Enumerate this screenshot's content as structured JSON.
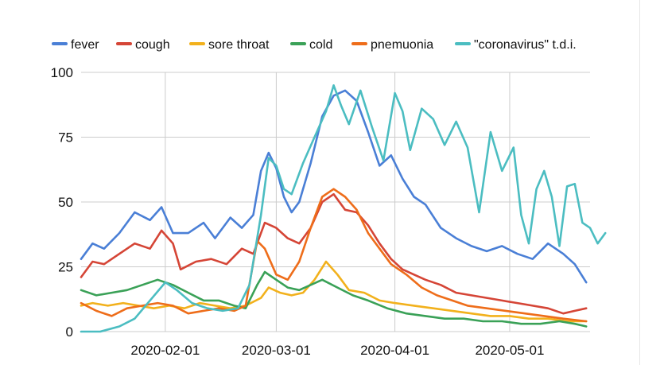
{
  "chart_data": {
    "type": "line",
    "title": "",
    "xlabel": "",
    "ylabel": "",
    "x_start": "2020-01-10",
    "x_end": "2020-05-22",
    "ylim": [
      0,
      100
    ],
    "y_ticks": [
      0,
      25,
      50,
      75,
      100
    ],
    "x_ticks": [
      "2020-02-01",
      "2020-03-01",
      "2020-04-01",
      "2020-05-01"
    ],
    "grid": true,
    "legend_position": "top",
    "series": [
      {
        "name": "fever",
        "color": "#4a7fd6",
        "points": [
          [
            "2020-01-10",
            28
          ],
          [
            "2020-01-13",
            34
          ],
          [
            "2020-01-16",
            32
          ],
          [
            "2020-01-20",
            38
          ],
          [
            "2020-01-24",
            46
          ],
          [
            "2020-01-28",
            43
          ],
          [
            "2020-01-31",
            48
          ],
          [
            "2020-02-03",
            38
          ],
          [
            "2020-02-07",
            38
          ],
          [
            "2020-02-11",
            42
          ],
          [
            "2020-02-14",
            36
          ],
          [
            "2020-02-18",
            44
          ],
          [
            "2020-02-21",
            40
          ],
          [
            "2020-02-24",
            45
          ],
          [
            "2020-02-26",
            62
          ],
          [
            "2020-02-28",
            69
          ],
          [
            "2020-03-01",
            63
          ],
          [
            "2020-03-03",
            52
          ],
          [
            "2020-03-05",
            46
          ],
          [
            "2020-03-07",
            50
          ],
          [
            "2020-03-10",
            65
          ],
          [
            "2020-03-13",
            83
          ],
          [
            "2020-03-16",
            91
          ],
          [
            "2020-03-19",
            93
          ],
          [
            "2020-03-22",
            89
          ],
          [
            "2020-03-25",
            77
          ],
          [
            "2020-03-28",
            64
          ],
          [
            "2020-03-31",
            68
          ],
          [
            "2020-04-03",
            59
          ],
          [
            "2020-04-06",
            52
          ],
          [
            "2020-04-09",
            49
          ],
          [
            "2020-04-13",
            40
          ],
          [
            "2020-04-17",
            36
          ],
          [
            "2020-04-21",
            33
          ],
          [
            "2020-04-25",
            31
          ],
          [
            "2020-04-29",
            33
          ],
          [
            "2020-05-03",
            30
          ],
          [
            "2020-05-07",
            28
          ],
          [
            "2020-05-11",
            34
          ],
          [
            "2020-05-15",
            30
          ],
          [
            "2020-05-18",
            26
          ],
          [
            "2020-05-21",
            19
          ]
        ]
      },
      {
        "name": "cough",
        "color": "#d54536",
        "points": [
          [
            "2020-01-10",
            21
          ],
          [
            "2020-01-13",
            27
          ],
          [
            "2020-01-16",
            26
          ],
          [
            "2020-01-20",
            30
          ],
          [
            "2020-01-24",
            34
          ],
          [
            "2020-01-28",
            32
          ],
          [
            "2020-01-31",
            39
          ],
          [
            "2020-02-03",
            34
          ],
          [
            "2020-02-05",
            24
          ],
          [
            "2020-02-09",
            27
          ],
          [
            "2020-02-13",
            28
          ],
          [
            "2020-02-17",
            26
          ],
          [
            "2020-02-21",
            32
          ],
          [
            "2020-02-24",
            30
          ],
          [
            "2020-02-27",
            42
          ],
          [
            "2020-03-01",
            40
          ],
          [
            "2020-03-04",
            36
          ],
          [
            "2020-03-07",
            34
          ],
          [
            "2020-03-10",
            40
          ],
          [
            "2020-03-13",
            50
          ],
          [
            "2020-03-16",
            53
          ],
          [
            "2020-03-19",
            47
          ],
          [
            "2020-03-22",
            46
          ],
          [
            "2020-03-25",
            41
          ],
          [
            "2020-03-28",
            34
          ],
          [
            "2020-03-31",
            28
          ],
          [
            "2020-04-03",
            24
          ],
          [
            "2020-04-06",
            22
          ],
          [
            "2020-04-09",
            20
          ],
          [
            "2020-04-13",
            18
          ],
          [
            "2020-04-17",
            15
          ],
          [
            "2020-04-21",
            14
          ],
          [
            "2020-04-25",
            13
          ],
          [
            "2020-04-29",
            12
          ],
          [
            "2020-05-03",
            11
          ],
          [
            "2020-05-07",
            10
          ],
          [
            "2020-05-11",
            9
          ],
          [
            "2020-05-15",
            7
          ],
          [
            "2020-05-18",
            8
          ],
          [
            "2020-05-21",
            9
          ]
        ]
      },
      {
        "name": "sore throat",
        "color": "#f2b11c",
        "points": [
          [
            "2020-01-10",
            10
          ],
          [
            "2020-01-13",
            11
          ],
          [
            "2020-01-17",
            10
          ],
          [
            "2020-01-21",
            11
          ],
          [
            "2020-01-25",
            10
          ],
          [
            "2020-01-29",
            9
          ],
          [
            "2020-02-02",
            10
          ],
          [
            "2020-02-06",
            9
          ],
          [
            "2020-02-10",
            11
          ],
          [
            "2020-02-14",
            10
          ],
          [
            "2020-02-18",
            9
          ],
          [
            "2020-02-22",
            10
          ],
          [
            "2020-02-26",
            13
          ],
          [
            "2020-02-28",
            17
          ],
          [
            "2020-03-02",
            15
          ],
          [
            "2020-03-05",
            14
          ],
          [
            "2020-03-08",
            15
          ],
          [
            "2020-03-11",
            20
          ],
          [
            "2020-03-14",
            27
          ],
          [
            "2020-03-17",
            22
          ],
          [
            "2020-03-20",
            16
          ],
          [
            "2020-03-24",
            15
          ],
          [
            "2020-03-28",
            12
          ],
          [
            "2020-04-01",
            11
          ],
          [
            "2020-04-06",
            10
          ],
          [
            "2020-04-11",
            9
          ],
          [
            "2020-04-16",
            8
          ],
          [
            "2020-04-21",
            7
          ],
          [
            "2020-04-26",
            6
          ],
          [
            "2020-05-01",
            6
          ],
          [
            "2020-05-06",
            5
          ],
          [
            "2020-05-11",
            5
          ],
          [
            "2020-05-16",
            4
          ],
          [
            "2020-05-21",
            4
          ]
        ]
      },
      {
        "name": "cold",
        "color": "#3aa157",
        "points": [
          [
            "2020-01-10",
            16
          ],
          [
            "2020-01-14",
            14
          ],
          [
            "2020-01-18",
            15
          ],
          [
            "2020-01-22",
            16
          ],
          [
            "2020-01-26",
            18
          ],
          [
            "2020-01-30",
            20
          ],
          [
            "2020-02-03",
            18
          ],
          [
            "2020-02-07",
            15
          ],
          [
            "2020-02-11",
            12
          ],
          [
            "2020-02-15",
            12
          ],
          [
            "2020-02-19",
            10
          ],
          [
            "2020-02-22",
            9
          ],
          [
            "2020-02-25",
            18
          ],
          [
            "2020-02-27",
            23
          ],
          [
            "2020-03-01",
            20
          ],
          [
            "2020-03-04",
            17
          ],
          [
            "2020-03-07",
            16
          ],
          [
            "2020-03-10",
            18
          ],
          [
            "2020-03-13",
            20
          ],
          [
            "2020-03-17",
            17
          ],
          [
            "2020-03-21",
            14
          ],
          [
            "2020-03-25",
            12
          ],
          [
            "2020-03-30",
            9
          ],
          [
            "2020-04-04",
            7
          ],
          [
            "2020-04-09",
            6
          ],
          [
            "2020-04-14",
            5
          ],
          [
            "2020-04-19",
            5
          ],
          [
            "2020-04-24",
            4
          ],
          [
            "2020-04-29",
            4
          ],
          [
            "2020-05-04",
            3
          ],
          [
            "2020-05-09",
            3
          ],
          [
            "2020-05-14",
            4
          ],
          [
            "2020-05-18",
            3
          ],
          [
            "2020-05-21",
            2
          ]
        ]
      },
      {
        "name": "pnemuonia",
        "color": "#ee6d1a",
        "points": [
          [
            "2020-01-10",
            11
          ],
          [
            "2020-01-14",
            8
          ],
          [
            "2020-01-18",
            6
          ],
          [
            "2020-01-22",
            9
          ],
          [
            "2020-01-26",
            10
          ],
          [
            "2020-01-30",
            11
          ],
          [
            "2020-02-03",
            10
          ],
          [
            "2020-02-07",
            7
          ],
          [
            "2020-02-11",
            8
          ],
          [
            "2020-02-15",
            9
          ],
          [
            "2020-02-19",
            8
          ],
          [
            "2020-02-22",
            10
          ],
          [
            "2020-02-25",
            35
          ],
          [
            "2020-02-27",
            32
          ],
          [
            "2020-03-01",
            22
          ],
          [
            "2020-03-04",
            20
          ],
          [
            "2020-03-07",
            27
          ],
          [
            "2020-03-10",
            40
          ],
          [
            "2020-03-13",
            52
          ],
          [
            "2020-03-16",
            55
          ],
          [
            "2020-03-19",
            52
          ],
          [
            "2020-03-22",
            47
          ],
          [
            "2020-03-25",
            38
          ],
          [
            "2020-03-28",
            32
          ],
          [
            "2020-03-31",
            26
          ],
          [
            "2020-04-04",
            22
          ],
          [
            "2020-04-08",
            17
          ],
          [
            "2020-04-12",
            14
          ],
          [
            "2020-04-16",
            12
          ],
          [
            "2020-04-20",
            10
          ],
          [
            "2020-04-25",
            9
          ],
          [
            "2020-04-30",
            8
          ],
          [
            "2020-05-05",
            7
          ],
          [
            "2020-05-10",
            6
          ],
          [
            "2020-05-15",
            5
          ],
          [
            "2020-05-21",
            4
          ]
        ]
      },
      {
        "name": "\"coronavirus\" t.d.i.",
        "color": "#4bbdc1",
        "points": [
          [
            "2020-01-10",
            0
          ],
          [
            "2020-01-15",
            0
          ],
          [
            "2020-01-20",
            2
          ],
          [
            "2020-01-24",
            5
          ],
          [
            "2020-01-28",
            12
          ],
          [
            "2020-02-01",
            19
          ],
          [
            "2020-02-04",
            16
          ],
          [
            "2020-02-08",
            11
          ],
          [
            "2020-02-12",
            9
          ],
          [
            "2020-02-16",
            8
          ],
          [
            "2020-02-20",
            9
          ],
          [
            "2020-02-23",
            18
          ],
          [
            "2020-02-26",
            45
          ],
          [
            "2020-02-28",
            67
          ],
          [
            "2020-03-01",
            64
          ],
          [
            "2020-03-03",
            55
          ],
          [
            "2020-03-05",
            53
          ],
          [
            "2020-03-08",
            65
          ],
          [
            "2020-03-11",
            75
          ],
          [
            "2020-03-14",
            85
          ],
          [
            "2020-03-16",
            95
          ],
          [
            "2020-03-18",
            87
          ],
          [
            "2020-03-20",
            80
          ],
          [
            "2020-03-23",
            93
          ],
          [
            "2020-03-26",
            79
          ],
          [
            "2020-03-29",
            66
          ],
          [
            "2020-04-01",
            92
          ],
          [
            "2020-04-03",
            85
          ],
          [
            "2020-04-05",
            70
          ],
          [
            "2020-04-08",
            86
          ],
          [
            "2020-04-11",
            82
          ],
          [
            "2020-04-14",
            72
          ],
          [
            "2020-04-17",
            81
          ],
          [
            "2020-04-20",
            71
          ],
          [
            "2020-04-23",
            46
          ],
          [
            "2020-04-26",
            77
          ],
          [
            "2020-04-29",
            62
          ],
          [
            "2020-05-02",
            71
          ],
          [
            "2020-05-04",
            45
          ],
          [
            "2020-05-06",
            34
          ],
          [
            "2020-05-08",
            55
          ],
          [
            "2020-05-10",
            62
          ],
          [
            "2020-05-12",
            52
          ],
          [
            "2020-05-14",
            33
          ],
          [
            "2020-05-16",
            56
          ],
          [
            "2020-05-18",
            57
          ],
          [
            "2020-05-20",
            42
          ],
          [
            "2020-05-22",
            40
          ],
          [
            "2020-05-24",
            34
          ],
          [
            "2020-05-26",
            38
          ]
        ]
      }
    ]
  }
}
